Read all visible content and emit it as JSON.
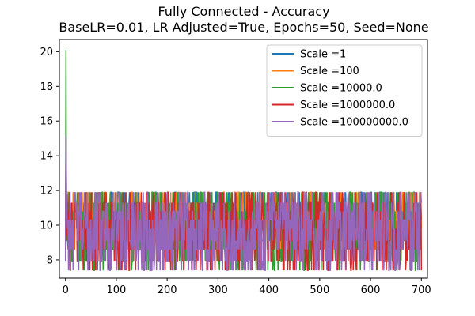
{
  "chart_data": {
    "type": "line",
    "title": "Fully Connected - Accuracy",
    "subtitle": "BaseLR=0.01, LR Adjusted=True, Epochs=50, Seed=None",
    "xlabel": "",
    "ylabel": "",
    "xlim": [
      -12,
      712
    ],
    "ylim": [
      6.95,
      20.7
    ],
    "xticks": [
      0,
      100,
      200,
      300,
      400,
      500,
      600,
      700
    ],
    "yticks": [
      8,
      10,
      12,
      14,
      16,
      18,
      20
    ],
    "grid": false,
    "legend_position": "top-right",
    "n_points": 701,
    "series": [
      {
        "name": "Scale =1",
        "color": "#1f77b4",
        "start_values": [
          8.6,
          9.8,
          10.6,
          10.6
        ],
        "range": [
          8.6,
          11.9
        ]
      },
      {
        "name": "Scale =100",
        "color": "#ff7f0e",
        "start_values": [
          8.0,
          9.5,
          10.6,
          10.9
        ],
        "range": [
          8.5,
          11.9
        ]
      },
      {
        "name": "Scale =10000.0",
        "color": "#2ca02c",
        "start_values": [
          8.7,
          20.1,
          9.1,
          11.0
        ],
        "range": [
          7.4,
          11.9
        ]
      },
      {
        "name": "Scale =1000000.0",
        "color": "#d62728",
        "start_values": [
          8.1,
          15.0,
          9.4,
          11.8
        ],
        "range": [
          7.4,
          11.9
        ]
      },
      {
        "name": "Scale =100000000.0",
        "color": "#9467bd",
        "start_values": [
          7.9,
          15.2,
          12.1,
          10.5
        ],
        "range": [
          7.4,
          11.9
        ]
      }
    ]
  }
}
